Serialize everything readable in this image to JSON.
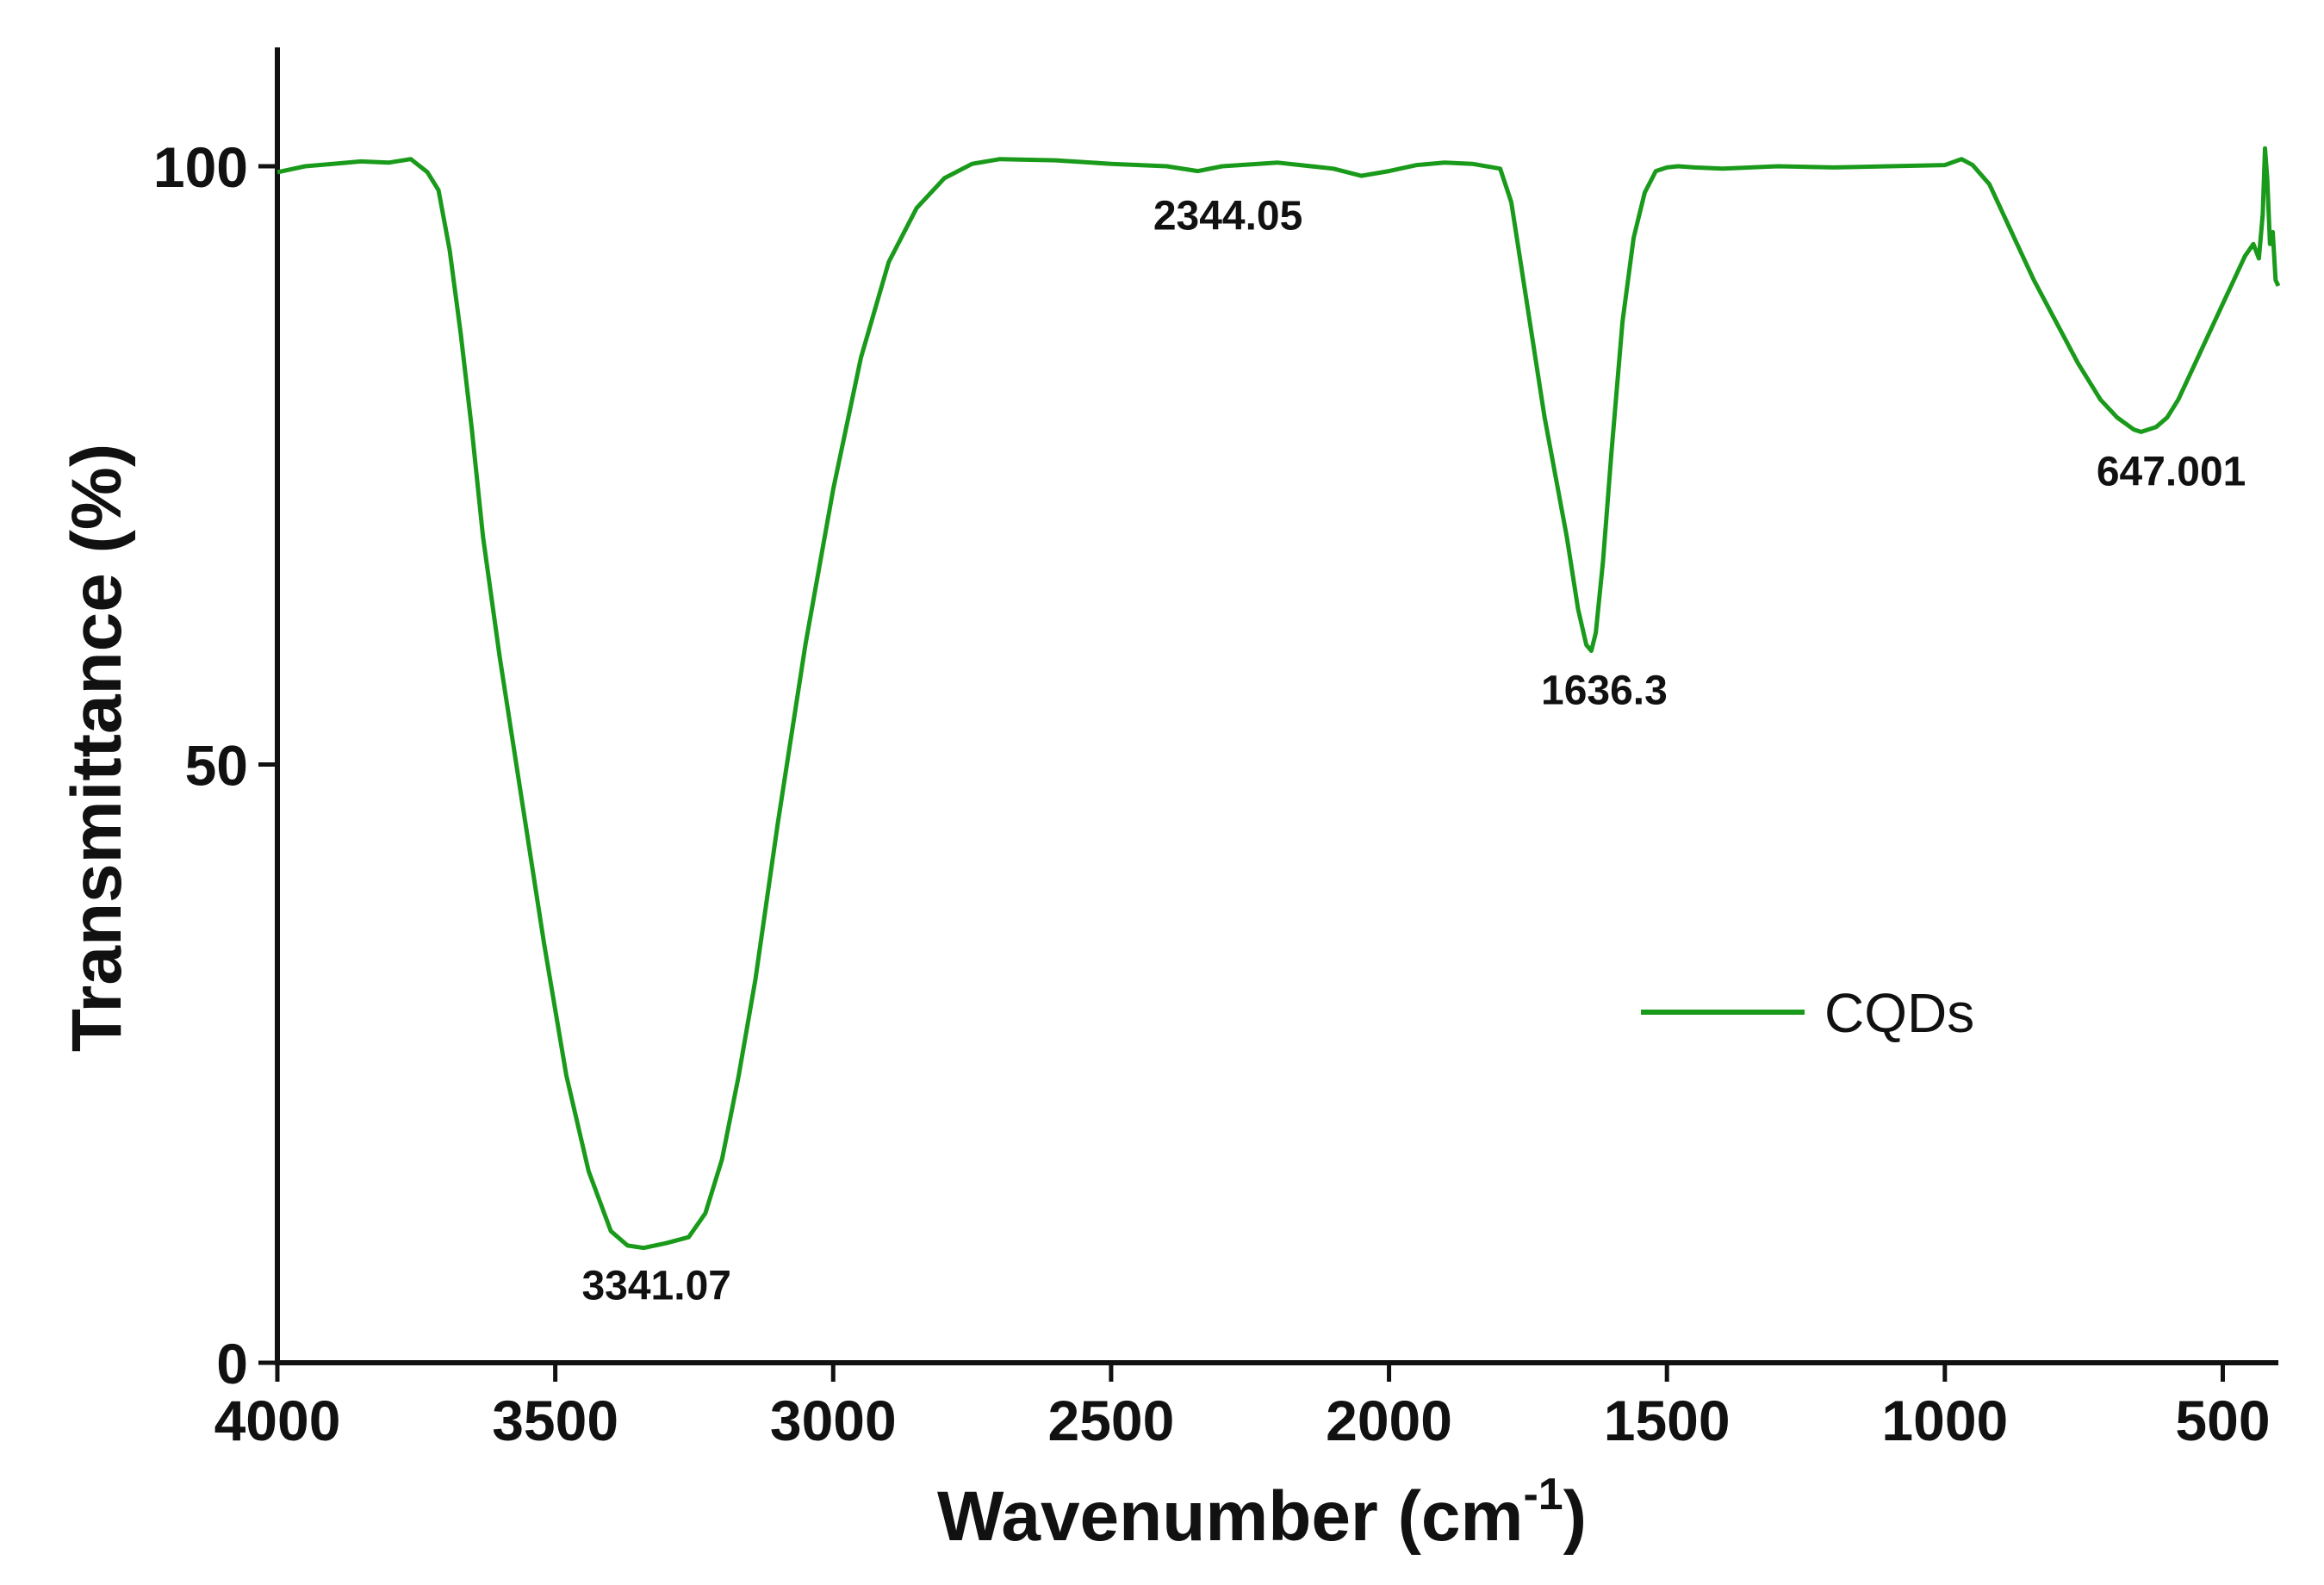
{
  "chart_data": {
    "type": "line",
    "title": "",
    "xlabel": "Wavenumber (cm",
    "xlabel_superscript": "-1",
    "xlabel_suffix": ")",
    "ylabel": "Transmittance (%)",
    "xlim": [
      4000,
      400
    ],
    "ylim": [
      0,
      110
    ],
    "x_ticks": [
      4000,
      3500,
      3000,
      2500,
      2000,
      1500,
      1000,
      500
    ],
    "x_tick_labels": [
      "4000",
      "3500",
      "3000",
      "2500",
      "2000",
      "1500",
      "1000",
      "500"
    ],
    "y_ticks": [
      0,
      50,
      100
    ],
    "y_tick_labels": [
      "0",
      "50",
      "100"
    ],
    "grid": false,
    "legend_position": "center-right",
    "series": [
      {
        "name": "CQDs",
        "color": "#1a9a1a",
        "x": [
          4000,
          3950,
          3900,
          3850,
          3800,
          3760,
          3730,
          3710,
          3690,
          3670,
          3650,
          3630,
          3600,
          3560,
          3520,
          3480,
          3440,
          3400,
          3370,
          3341,
          3300,
          3260,
          3230,
          3200,
          3170,
          3140,
          3100,
          3050,
          3000,
          2950,
          2900,
          2850,
          2800,
          2750,
          2700,
          2600,
          2500,
          2400,
          2344,
          2300,
          2200,
          2100,
          2050,
          2000,
          1950,
          1900,
          1850,
          1800,
          1780,
          1760,
          1740,
          1720,
          1700,
          1680,
          1660,
          1645,
          1636,
          1628,
          1615,
          1600,
          1580,
          1560,
          1540,
          1520,
          1500,
          1480,
          1450,
          1400,
          1300,
          1200,
          1100,
          1000,
          970,
          950,
          920,
          900,
          870,
          840,
          800,
          760,
          720,
          690,
          660,
          647,
          620,
          600,
          580,
          560,
          540,
          520,
          500,
          480,
          460,
          445,
          435,
          428,
          424,
          420,
          415,
          410,
          405,
          400
        ],
        "values": [
          99.5,
          100,
          100.2,
          100.4,
          100.3,
          100.6,
          99.5,
          98,
          93,
          86,
          78,
          69,
          59,
          47,
          35,
          24,
          16,
          11,
          9.8,
          9.6,
          10,
          10.5,
          12.5,
          17,
          24,
          32,
          45,
          60,
          73,
          84,
          92,
          96.5,
          99,
          100.2,
          100.6,
          100.5,
          100.2,
          100,
          99.6,
          100,
          100.3,
          99.8,
          99.2,
          99.6,
          100.1,
          100.3,
          100.2,
          99.8,
          97,
          91,
          85,
          79,
          74,
          69,
          63,
          60,
          59.5,
          61,
          67,
          76,
          87,
          94,
          97.8,
          99.6,
          99.9,
          100,
          99.9,
          99.8,
          100,
          99.9,
          100,
          100.1,
          100.6,
          100.1,
          98.5,
          96.5,
          93.5,
          90.5,
          87,
          83.5,
          80.5,
          79,
          78,
          77.8,
          78.2,
          79,
          80.5,
          82.5,
          84.5,
          86.5,
          88.5,
          90.5,
          92.5,
          93.5,
          92.3,
          96,
          101.5,
          99,
          93.5,
          94.5,
          90.5,
          90
        ]
      }
    ],
    "annotations": [
      {
        "text": "3341.07",
        "x": 3341,
        "y": 9.6
      },
      {
        "text": "2344.05",
        "x": 2344,
        "y": 99.6
      },
      {
        "text": "1636.3",
        "x": 1636,
        "y": 59.5
      },
      {
        "text": "647.001",
        "x": 647,
        "y": 77.8
      }
    ]
  }
}
